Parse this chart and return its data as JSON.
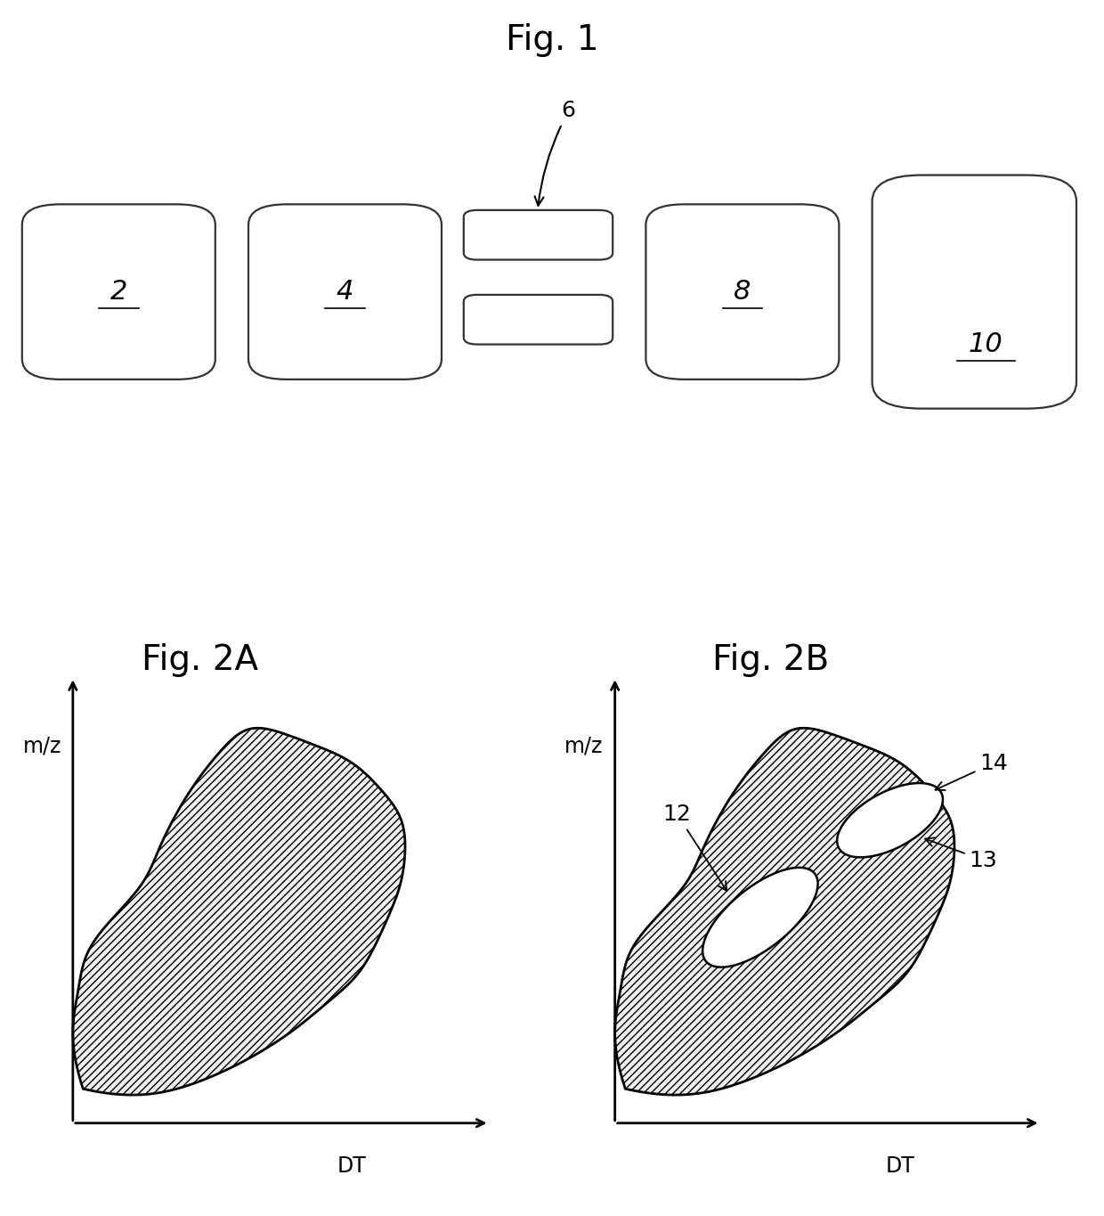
{
  "title1": "Fig. 1",
  "title2A": "Fig. 2A",
  "title2B": "Fig. 2B",
  "bg_color": "#ffffff",
  "label_2": "2",
  "label_4": "4",
  "label_6": "6",
  "label_8": "8",
  "label_10": "10",
  "label_12": "12",
  "label_13": "13",
  "label_14": "14",
  "xlabel": "DT",
  "ylabel": "m/z",
  "title_fontsize": 28,
  "label_fontsize": 18,
  "axis_label_fontsize": 17,
  "number_fontsize": 22
}
